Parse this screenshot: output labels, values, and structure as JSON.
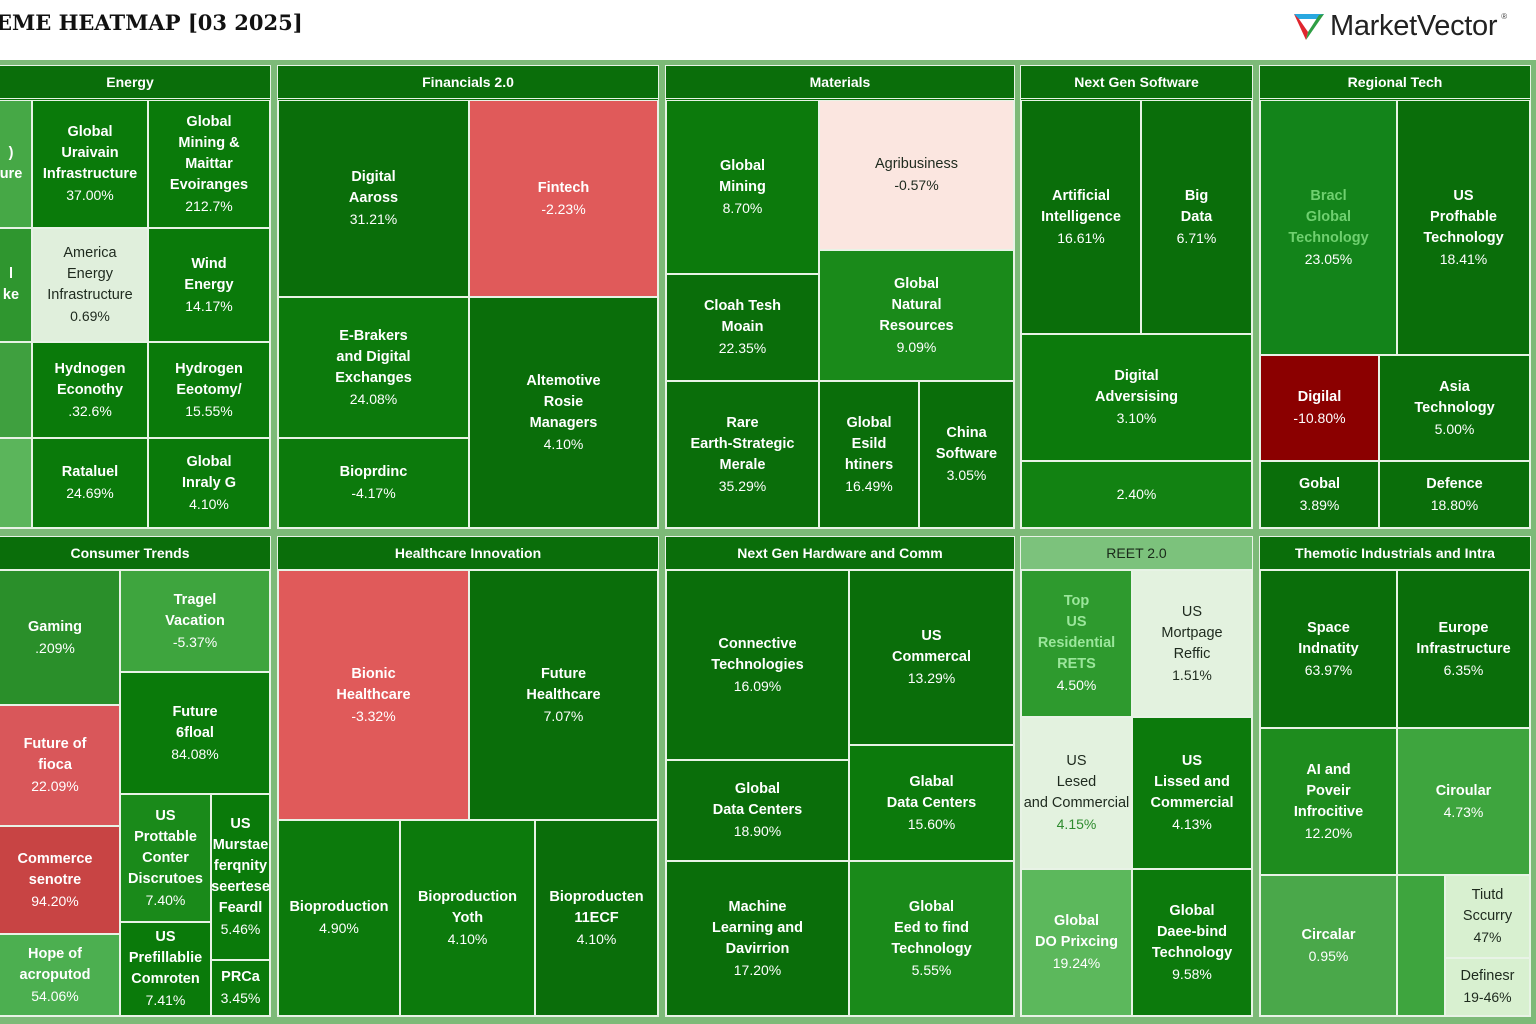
{
  "header": {
    "title": "EME HEATMAP [03 2025]",
    "logo_text": "MarketVector",
    "logo_mark": "®"
  },
  "colors": {
    "strong_green": "#0a6e0a",
    "mid_green": "#3ea53e",
    "light_green": "#e0efdc",
    "red": "#e05a5a",
    "dark_red": "#8b0000",
    "light_red": "#fbe6e0"
  },
  "sections": [
    {
      "title": "Energy",
      "tiles": [
        {
          "name": ")\nure",
          "value": "",
          "color": "#46a846"
        },
        {
          "name": "l\nke",
          "value": "",
          "color": "#2f962f"
        },
        {
          "name": "",
          "value": "",
          "color": "#3fa03f"
        },
        {
          "name": "",
          "value": "",
          "color": "#5bb55b"
        },
        {
          "name": "Global\nUraivain\nInfrastructure",
          "value": "37.00%",
          "color": "#0a7a0a"
        },
        {
          "name": "Global\nMining &\nMaittar\nEvoiranges",
          "value": "212.7%",
          "color": "#0a7a0a"
        },
        {
          "name": "America\nEnergy\nInfrastructure",
          "value": "0.69%",
          "color": "#e0efdc",
          "light": true
        },
        {
          "name": "Wind\nEnergy",
          "value": "14.17%",
          "color": "#0a7a0a"
        },
        {
          "name": "Hydnogen\nEconothy",
          "value": ".32.6%",
          "color": "#0a7a0a"
        },
        {
          "name": "Hydrogen\nEeotomy/",
          "value": "15.55%",
          "color": "#0a7a0a"
        },
        {
          "name": "Rataluel",
          "value": "24.69%",
          "color": "#0a7a0a"
        },
        {
          "name": "Global\nInraly G",
          "value": "4.10%",
          "color": "#0a7a0a"
        }
      ]
    },
    {
      "title": "Financials 2.0",
      "tiles": [
        {
          "name": "Digital\nAaross",
          "value": "31.21%",
          "color": "#0a6e0a"
        },
        {
          "name": "Fintech",
          "value": "-2.23%",
          "color": "#e05a5a"
        },
        {
          "name": "E-Brakers\nand Digital\nExchanges",
          "value": "24.08%",
          "color": "#0c7a0c"
        },
        {
          "name": "Bioprdinc",
          "value": "-4.17%",
          "color": "#0c7a0c"
        },
        {
          "name": "Altemotive\nRosie\nManagers",
          "value": "4.10%",
          "color": "#0a6e0a"
        }
      ]
    },
    {
      "title": "Materials",
      "tiles": [
        {
          "name": "Global\nMining",
          "value": "8.70%",
          "color": "#0c7a0c"
        },
        {
          "name": "Agribusiness",
          "value": "-0.57%",
          "color": "#fbe6e0",
          "light": true
        },
        {
          "name": "Cloah Tesh\nMoain",
          "value": "22.35%",
          "color": "#0a6e0a"
        },
        {
          "name": "Global\nNatural\nResources",
          "value": "9.09%",
          "color": "#1a8a1a"
        },
        {
          "name": "Rare\nEarth-Strategic\nMerale",
          "value": "35.29%",
          "color": "#0a6e0a"
        },
        {
          "name": "Global\nEsild\nhtiners",
          "value": "16.49%",
          "color": "#0a6e0a"
        },
        {
          "name": "China\nSoftware",
          "value": "3.05%",
          "color": "#0a6e0a"
        }
      ]
    },
    {
      "title": "Next Gen Software",
      "tiles": [
        {
          "name": "Artificial\nIntelligence",
          "value": "16.61%",
          "color": "#0a6e0a"
        },
        {
          "name": "Big\nData",
          "value": "6.71%",
          "color": "#0a6e0a"
        },
        {
          "name": "Digital\nAdversising",
          "value": "3.10%",
          "color": "#0c7a0c"
        },
        {
          "name": "",
          "value": "2.40%",
          "color": "#128212"
        }
      ]
    },
    {
      "title": "Regional Tech",
      "tiles": [
        {
          "name": "Bracl\nGlobal\nTechnology",
          "value": "23.05%",
          "color": "#13841a",
          "namecolor": "#6fd06f"
        },
        {
          "name": "US\nProfhable\nTechnology",
          "value": "18.41%",
          "color": "#0a6e0a"
        },
        {
          "name": "Digilal",
          "value": "-10.80%",
          "color": "#8b0000"
        },
        {
          "name": "Asia\nTechnology",
          "value": "5.00%",
          "color": "#0a6e0a"
        },
        {
          "name": "Gobal",
          "value": "3.89%",
          "color": "#0a6e0a"
        },
        {
          "name": "Defence",
          "value": "18.80%",
          "color": "#0a6e0a"
        }
      ]
    },
    {
      "title": "Consumer Trends",
      "tiles": [
        {
          "name": "Gaming",
          "value": ".209%",
          "color": "#2a8f2a"
        },
        {
          "name": "Future of\nfioca",
          "value": "22.09%",
          "color": "#d9575a"
        },
        {
          "name": "Commerce\nsenotre",
          "value": "94.20%",
          "color": "#c84444"
        },
        {
          "name": "Hope of\nacroputod",
          "value": "54.06%",
          "color": "#4caf50"
        },
        {
          "name": "Tragel\nVacation",
          "value": "-5.37%",
          "color": "#3ea53e"
        },
        {
          "name": "Future\n6floal",
          "value": "84.08%",
          "color": "#0a7a0a"
        },
        {
          "name": "US\nProttable\nConter\nDiscrutoes",
          "value": "7.40%",
          "color": "#1a8a1a"
        },
        {
          "name": "US\nMurstae\nferqnity\nseertese\nFeardl",
          "value": "5.46%",
          "color": "#0a7a0a"
        },
        {
          "name": "US\nPrefillablie\nComroten",
          "value": "7.41%",
          "color": "#0a7a0a"
        },
        {
          "name": "PRCa",
          "value": "3.45%",
          "color": "#0a7a0a"
        }
      ]
    },
    {
      "title": "Healthcare Innovation",
      "tiles": [
        {
          "name": "Bionic\nHealthcare",
          "value": "-3.32%",
          "color": "#e05a5a"
        },
        {
          "name": "Future\nHealthcare",
          "value": "7.07%",
          "color": "#0a6e0a"
        },
        {
          "name": "Bioproduction",
          "value": "4.90%",
          "color": "#0c7a0c"
        },
        {
          "name": "Bioproduction\nYoth",
          "value": "4.10%",
          "color": "#0c7a0c"
        },
        {
          "name": "Bioproducten\n11ECF",
          "value": "4.10%",
          "color": "#0a6e0a"
        }
      ]
    },
    {
      "title": "Next Gen Hardware and Comm",
      "tiles": [
        {
          "name": "Connective\nTechnologies",
          "value": "16.09%",
          "color": "#0a6e0a"
        },
        {
          "name": "US\nCommercal",
          "value": "13.29%",
          "color": "#0a6e0a"
        },
        {
          "name": "Global\nData Centers",
          "value": "18.90%",
          "color": "#0a6e0a"
        },
        {
          "name": "Glabal\nData Centers",
          "value": "15.60%",
          "color": "#0c7a0c"
        },
        {
          "name": "Machine\nLearning and\nDavirrion",
          "value": "17.20%",
          "color": "#0a6e0a"
        },
        {
          "name": "Global\nEed to find\nTechnology",
          "value": "5.55%",
          "color": "#1a8a1a"
        }
      ]
    },
    {
      "title": "REET 2.0",
      "tiles": [
        {
          "name": "Top\nUS\nResidential\nRETS",
          "value": "4.50%",
          "color": "#2e9a2e",
          "namecolor": "#9be69b"
        },
        {
          "name": "US\nMortpage\nReffic",
          "value": "1.51%",
          "color": "#e3f2df",
          "light": true
        },
        {
          "name": "US\nLesed\nand Commercial",
          "value": "4.15%",
          "color": "#e3f2df",
          "light": true
        },
        {
          "name": "US\nLissed and\nCommercial",
          "value": "4.13%",
          "color": "#0c7a0c"
        },
        {
          "name": "Global\nDO Prixcing",
          "value": "19.24%",
          "color": "#5cb85c"
        },
        {
          "name": "Global\nDaee-bind\nTechnology",
          "value": "9.58%",
          "color": "#0c7a0c"
        }
      ]
    },
    {
      "title": "Themotic Industrials and Intra",
      "tiles": [
        {
          "name": "Space\nIndnatity",
          "value": "63.97%",
          "color": "#0a6e0a"
        },
        {
          "name": "Europe\nInfrastructure",
          "value": "6.35%",
          "color": "#0a6e0a"
        },
        {
          "name": "AI and\nPoveir\nInfrocitive",
          "value": "12.20%",
          "color": "#1e8c1e"
        },
        {
          "name": "Ciroular",
          "value": "4.73%",
          "color": "#3ea53e"
        },
        {
          "name": "Circalar",
          "value": "0.95%",
          "color": "#4aa84a"
        },
        {
          "name": "",
          "value": "",
          "color": "#3ea53e"
        },
        {
          "name": "Tiutd\nSccurry",
          "value": "47%",
          "color": "#d8f0d0",
          "light": true
        },
        {
          "name": "Definesr",
          "value": "19-46%",
          "color": "#d8f0d0",
          "light": true
        }
      ]
    }
  ]
}
